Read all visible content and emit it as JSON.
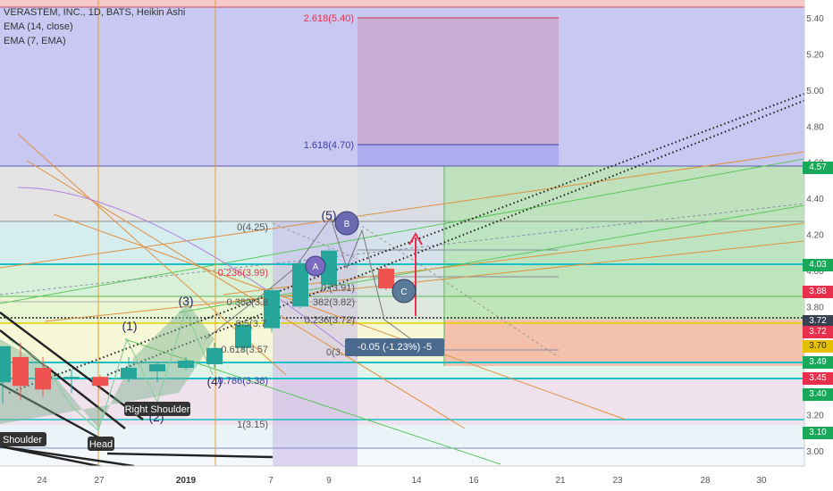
{
  "legend": {
    "title": "VERASTEM, INC., 1D, BATS, Heikin Ashi",
    "ema1": "EMA (14, close)",
    "ema2": "EMA (7, EMA)"
  },
  "chart_data": {
    "type": "candlestick",
    "title": "VERASTEM, INC., 1D, BATS, Heikin Ashi",
    "ylim": [
      2.92,
      5.52
    ],
    "y_ticks": [
      "5.40",
      "5.20",
      "5.00",
      "4.80",
      "4.60",
      "4.40",
      "4.20",
      "4.00",
      "3.80",
      "3.60",
      "3.40",
      "3.20",
      "3.00"
    ],
    "x_ticks": [
      "24",
      "27",
      "2019",
      "7",
      "9",
      "14",
      "16",
      "21",
      "23",
      "28",
      "30"
    ],
    "grid": true,
    "candles": [
      {
        "x": 3,
        "o": 3.38,
        "h": 3.56,
        "l": 3.26,
        "c": 3.58
      },
      {
        "x": 23,
        "o": 3.52,
        "h": 3.6,
        "l": 3.28,
        "c": 3.36
      },
      {
        "x": 48,
        "o": 3.46,
        "h": 3.52,
        "l": 3.3,
        "c": 3.34
      },
      {
        "x": 80,
        "o": 3.4,
        "h": 3.45,
        "l": 3.32,
        "c": 3.41
      },
      {
        "x": 112,
        "o": 3.41,
        "h": 3.42,
        "l": 3.34,
        "c": 3.36
      },
      {
        "x": 144,
        "o": 3.4,
        "h": 3.52,
        "l": 3.38,
        "c": 3.46
      },
      {
        "x": 176,
        "o": 3.44,
        "h": 3.49,
        "l": 3.38,
        "c": 3.48
      },
      {
        "x": 208,
        "o": 3.46,
        "h": 3.52,
        "l": 3.45,
        "c": 3.5
      },
      {
        "x": 240,
        "o": 3.48,
        "h": 3.6,
        "l": 3.46,
        "c": 3.57
      },
      {
        "x": 272,
        "o": 3.57,
        "h": 3.71,
        "l": 3.55,
        "c": 3.7
      },
      {
        "x": 304,
        "o": 3.68,
        "h": 3.9,
        "l": 3.66,
        "c": 3.89
      },
      {
        "x": 336,
        "o": 3.8,
        "h": 4.06,
        "l": 3.79,
        "c": 4.04
      },
      {
        "x": 368,
        "o": 3.92,
        "h": 4.12,
        "l": 3.91,
        "c": 4.11
      },
      {
        "x": 432,
        "o": 4.01,
        "h": 4.02,
        "l": 3.89,
        "c": 3.9
      }
    ],
    "price_labels": [
      {
        "label": "4.57",
        "value": 4.57,
        "color": "#18a85a"
      },
      {
        "label": "4.03",
        "value": 4.03,
        "color": "#18a85a"
      },
      {
        "label": "3.88",
        "value": 3.88,
        "color": "#e8304d"
      },
      {
        "label": "3.72",
        "value": 3.72,
        "color": "#364152"
      },
      {
        "label": "3.72",
        "value": 3.66,
        "color": "#e8304d"
      },
      {
        "label": "3.70",
        "value": 3.58,
        "color": "#e5c000"
      },
      {
        "label": "3.49",
        "value": 3.49,
        "color": "#18a85a"
      },
      {
        "label": "3.45",
        "value": 3.4,
        "color": "#e8304d"
      },
      {
        "label": "3.40",
        "value": 3.31,
        "color": "#18a85a"
      },
      {
        "label": "3.10",
        "value": 3.1,
        "color": "#18a85a"
      }
    ],
    "fib_labels": [
      {
        "text": "2.618(5.40)",
        "value": 5.4,
        "color": "#e8304d"
      },
      {
        "text": "1.618(4.70)",
        "value": 4.7,
        "color": "#3a3fa0"
      },
      {
        "text": "0(4.25)",
        "value": 4.25,
        "color": "#555555"
      },
      {
        "text": "0.236(3.99)",
        "value": 3.99,
        "color": "#e8304d"
      },
      {
        "text": "0.382(3.8",
        "value": 3.83,
        "color": "#555555"
      },
      {
        "text": "0.5(3.7",
        "value": 3.71,
        "color": "#555555"
      },
      {
        "text": "0.618(3.57",
        "value": 3.57,
        "color": "#555555"
      },
      {
        "text": "0.786(3.38)",
        "value": 3.38,
        "color": "#3a3fa0"
      },
      {
        "text": "1(3.15)",
        "value": 3.15,
        "color": "#555555"
      },
      {
        "text": "0.236(3.72)",
        "value": 3.72,
        "color": "#555555"
      },
      {
        "text": "382(3.82)",
        "value": 3.82,
        "color": "#555555"
      },
      {
        "text": "0.(3.91)",
        "value": 3.91,
        "color": "#555555"
      },
      {
        "text": "0(3.",
        "value": 3.6,
        "color": "#555555"
      }
    ],
    "pattern_labels": [
      "Head",
      "Right Shoulder",
      "Shoulder"
    ],
    "wave_labels": [
      "(1)",
      "(2)",
      "(3)",
      "(4)",
      "(5)"
    ],
    "markers": [
      "B",
      "A",
      "C"
    ],
    "measurement": "-0.05 (-1.23%) -5"
  }
}
